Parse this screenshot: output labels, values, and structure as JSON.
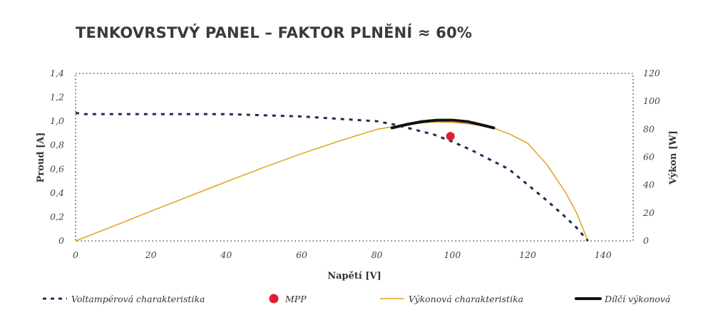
{
  "chart_data": {
    "type": "line",
    "title": "TENKOVRSTVÝ PANEL – FAKTOR PLNĚNÍ ≈ 60%",
    "xlabel": "Napětí [V]",
    "ylabel_left": "Proud [A]",
    "ylabel_right": "Výkon [W]",
    "xlim": [
      0,
      148
    ],
    "ylim_left": [
      0,
      1.4
    ],
    "ylim_right": [
      0,
      120
    ],
    "x_ticks": [
      "0",
      "20",
      "40",
      "60",
      "80",
      "100",
      "120",
      "140"
    ],
    "y_left_ticks": [
      "0",
      "0,2",
      "0,4",
      "0,6",
      "0,8",
      "1,0",
      "1,2",
      "1,4"
    ],
    "y_right_ticks": [
      "0",
      "20",
      "40",
      "60",
      "80",
      "100",
      "120"
    ],
    "grid": "dotted frame",
    "legend_position": "bottom",
    "series": [
      {
        "name": "Voltampérová charakteristika",
        "axis": "left",
        "color": "#1f2a55",
        "style": "dashed",
        "x": [
          0,
          2,
          10,
          20,
          30,
          40,
          50,
          60,
          70,
          80,
          85,
          90,
          95,
          100,
          105,
          110,
          115,
          120,
          125,
          130,
          133,
          136
        ],
        "y": [
          1.07,
          1.06,
          1.06,
          1.06,
          1.06,
          1.06,
          1.05,
          1.04,
          1.02,
          1.0,
          0.97,
          0.93,
          0.89,
          0.83,
          0.76,
          0.68,
          0.6,
          0.47,
          0.34,
          0.2,
          0.11,
          0.0
        ]
      },
      {
        "name": "Výkonová charakteristika",
        "axis": "right",
        "color": "#e3a01b",
        "style": "solid",
        "x": [
          0,
          10,
          20,
          30,
          40,
          50,
          60,
          70,
          80,
          85,
          90,
          95,
          100,
          105,
          110,
          115,
          120,
          125,
          130,
          133,
          136
        ],
        "y": [
          0,
          10.5,
          21.3,
          31.8,
          42.4,
          52.7,
          62.5,
          71.6,
          79.9,
          82.2,
          84.0,
          85.3,
          84.9,
          83.7,
          81.8,
          76.8,
          70.0,
          55.0,
          35.0,
          20.0,
          0.0
        ]
      },
      {
        "name": "Dílčí výkonová",
        "axis": "right",
        "color": "#111111",
        "style": "solid-thick",
        "x": [
          84,
          88,
          92,
          96,
          100,
          104,
          108,
          111
        ],
        "y": [
          81.0,
          83.5,
          85.5,
          86.5,
          86.5,
          85.5,
          83.0,
          81.0
        ]
      }
    ],
    "points": [
      {
        "name": "MPP",
        "color": "#e0202e",
        "x": 99.5,
        "y": 0.875
      }
    ]
  },
  "legend": [
    {
      "label": "Voltampérová charakteristika",
      "symbol": "dashed",
      "color": "#1f2a55"
    },
    {
      "label": "MPP",
      "symbol": "dot",
      "color": "#e0202e"
    },
    {
      "label": "Výkonová charakteristika",
      "symbol": "line",
      "color": "#e3a01b"
    },
    {
      "label": "Dílčí výkonová",
      "symbol": "thick-line",
      "color": "#111111"
    }
  ]
}
